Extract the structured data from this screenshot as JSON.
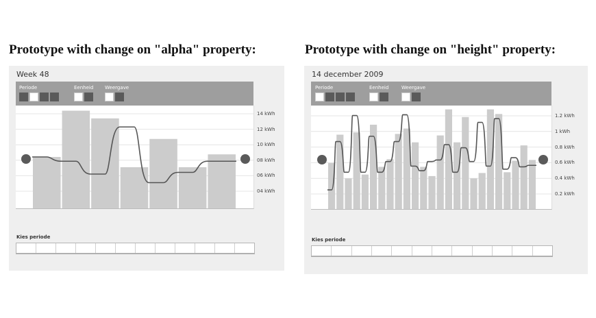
{
  "headings": {
    "left": "Prototype with change on \"alpha\" property:",
    "right": "Prototype with change on \"height\" property:"
  },
  "left_widget": {
    "title": "Week 48",
    "toolbar": {
      "periode": {
        "label": "Periode",
        "boxes": [
          "dark",
          "light",
          "dark",
          "dark"
        ]
      },
      "eenheid": {
        "label": "Eenheid",
        "boxes": [
          "light",
          "dark"
        ]
      },
      "weergave": {
        "label": "Weergave",
        "boxes": [
          "light",
          "dark"
        ]
      }
    },
    "y_axis": [
      "14 kWh",
      "12 kWh",
      "10 kWh",
      "08 kWh",
      "06 kWh",
      "04 kWh"
    ],
    "kies_periode": "Kies periode",
    "calendar_cells": 12
  },
  "right_widget": {
    "title": "14 december 2009",
    "toolbar": {
      "periode": {
        "label": "Periode",
        "boxes": [
          "light",
          "dark",
          "dark",
          "dark"
        ]
      },
      "eenheid": {
        "label": "Eenheid",
        "boxes": [
          "light",
          "dark"
        ]
      },
      "weergave": {
        "label": "Weergave",
        "boxes": [
          "light",
          "dark"
        ]
      }
    },
    "y_axis": [
      "1.2 kWh",
      "1 kWh",
      "0.8 kWh",
      "0.6 kWh",
      "0.4 kWh",
      "0.2 kWh"
    ],
    "kies_periode": "Kies periode",
    "calendar_cells": 12
  },
  "colors": {
    "bar": "#cccccc",
    "line": "#555555",
    "handle": "#5a5a5a",
    "toolbar": "#9e9e9e",
    "card": "#efefef"
  },
  "chart_data": [
    {
      "type": "bar",
      "ylim": [
        3,
        15
      ],
      "values": [
        9,
        14.4,
        13.5,
        7.8,
        11.1,
        7.8,
        9.3
      ],
      "line": [
        9,
        8.5,
        7,
        12.5,
        6,
        7.2,
        8.5
      ]
    },
    {
      "type": "bar",
      "ylim": [
        0,
        1.35
      ],
      "values": [
        0.6,
        0.97,
        0.4,
        1.0,
        0.45,
        1.1,
        0.55,
        0.65,
        0.98,
        1.05,
        0.87,
        0.55,
        0.43,
        0.96,
        1.3,
        0.87,
        1.2,
        0.4,
        0.47,
        1.3,
        1.24,
        0.48,
        0.63,
        0.83,
        0.64
      ],
      "line": [
        0.25,
        0.88,
        0.48,
        1.22,
        0.48,
        0.95,
        0.48,
        0.62,
        0.88,
        1.23,
        0.56,
        0.5,
        0.62,
        0.64,
        0.84,
        0.48,
        0.8,
        0.62,
        1.13,
        0.56,
        1.18,
        0.52,
        0.67,
        0.55,
        0.57
      ]
    }
  ]
}
